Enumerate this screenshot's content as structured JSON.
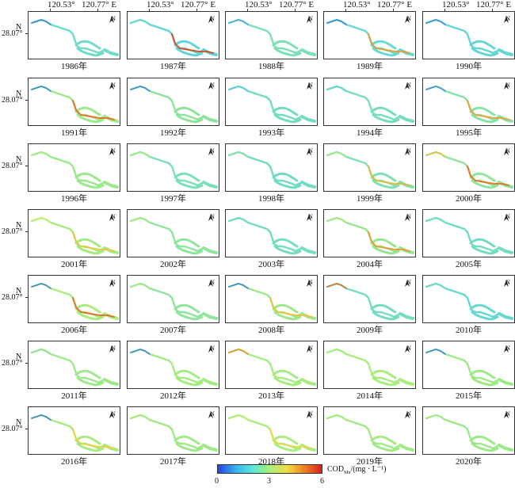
{
  "top_axis": {
    "left_label": "120.53°",
    "right_label": "120.77° E"
  },
  "left_axis": {
    "top_label": "N",
    "bottom_label": "28.07°"
  },
  "north_arrow": {
    "letter": "N",
    "icon": "north-arrow-icon"
  },
  "years": [
    "1986年",
    "1987年",
    "1988年",
    "1989年",
    "1990年",
    "1991年",
    "1992年",
    "1993年",
    "1994年",
    "1995年",
    "1996年",
    "1997年",
    "1998年",
    "1999年",
    "2000年",
    "2001年",
    "2002年",
    "2003年",
    "2004年",
    "2005年",
    "2006年",
    "2007年",
    "2008年",
    "2009年",
    "2010年",
    "2011年",
    "2012年",
    "2013年",
    "2014年",
    "2015年",
    "2016年",
    "2017年",
    "2018年",
    "2019年",
    "2020年"
  ],
  "colors": {
    "base": [
      "#6fdcc9",
      "#5fd5d9",
      "#7be0b4",
      "#6ad9cf",
      "#62d6d6",
      "#9bea8a",
      "#8ee39b",
      "#73ddc2",
      "#78deb9",
      "#86e3aa",
      "#9ae98c",
      "#7ce0b6",
      "#70dcc4",
      "#7fe1b1",
      "#8fe59c",
      "#a2ec84",
      "#8ee59b",
      "#75ddc0",
      "#96e690",
      "#72dcc3",
      "#a8ee7e",
      "#8fe59c",
      "#9de98a",
      "#74ddc1",
      "#66d8d1",
      "#9ee98a",
      "#a4ec82",
      "#a6ec80",
      "#a9ee7c",
      "#9fea88",
      "#a6ec80",
      "#a0ea86",
      "#a8ed7e",
      "#a2eb84",
      "#9ce988"
    ],
    "upstream": [
      "#3a86e0",
      "#6ad8cc",
      "#4fa8e8",
      "#3a86e0",
      "#4a8ae4",
      "#3a86e0",
      "#3e8ce2",
      "#60cce0",
      "#62d0d4",
      "#4a90e6",
      "#a6ec80",
      "#a6ec80",
      "#8ee29c",
      "#a6ec80",
      "#f0c040",
      "#c8f070",
      "#a6ec80",
      "#70d8c8",
      "#a6ec80",
      "#74dcc2",
      "#3a86e0",
      "#a6ec80",
      "#3e86e2",
      "#e07030",
      "#74dcc2",
      "#8ee29c",
      "#3e86e2",
      "#f08a30",
      "#a6ec80",
      "#3e86e2",
      "#3e86e2",
      "#a6ec80",
      "#b4ee78",
      "#a6ec80",
      "#a6ec80"
    ],
    "hot": [
      "",
      "#d84a18",
      "",
      "#e89a30",
      "",
      "#e86a20",
      "",
      "",
      "",
      "#f0a030",
      "",
      "",
      "",
      "#e8b838",
      "#e87020",
      "#e8c840",
      "",
      "",
      "#e89a30",
      "",
      "#e06a20",
      "",
      "#f0c040",
      "",
      "",
      "",
      "",
      "",
      "",
      "",
      "#f0d040",
      "",
      "#e8d850",
      "",
      ""
    ],
    "legend_gradient": [
      "#2a40e8",
      "#36b0f0",
      "#5ae8d8",
      "#a8f078",
      "#f0e040",
      "#f08020",
      "#d82020"
    ]
  },
  "legend": {
    "title": "COD",
    "subscript": "Mn",
    "unit": "/(mg · L⁻¹)",
    "ticks": [
      "0",
      "3",
      "6"
    ],
    "min": 0,
    "max": 6
  }
}
